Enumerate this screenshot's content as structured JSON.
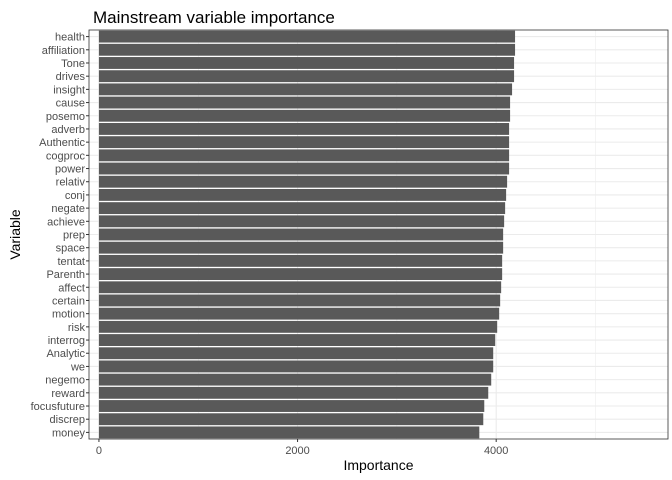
{
  "chart_data": {
    "type": "bar",
    "orientation": "horizontal",
    "title": "Mainstream variable importance",
    "xlabel": "Importance",
    "ylabel": "Variable",
    "xlim": [
      -100,
      5730
    ],
    "x_ticks": [
      0,
      2000,
      4000
    ],
    "x_tick_labels": [
      "0",
      "2000",
      "4000"
    ],
    "grid": true,
    "bar_color": "#595959",
    "grid_color": "#ebebeb",
    "panel_border_color": "#333333",
    "categories": [
      "health",
      "affiliation",
      "Tone",
      "drives",
      "insight",
      "cause",
      "posemo",
      "adverb",
      "Authentic",
      "cogproc",
      "power",
      "relativ",
      "conj",
      "negate",
      "achieve",
      "prep",
      "space",
      "tentat",
      "Parenth",
      "affect",
      "certain",
      "motion",
      "risk",
      "interrog",
      "Analytic",
      "we",
      "negemo",
      "reward",
      "focusfuture",
      "discrep",
      "money"
    ],
    "values": [
      4190,
      4190,
      4180,
      4180,
      4160,
      4140,
      4140,
      4130,
      4130,
      4130,
      4130,
      4110,
      4100,
      4090,
      4080,
      4070,
      4070,
      4060,
      4060,
      4050,
      4040,
      4030,
      4010,
      3990,
      3970,
      3970,
      3950,
      3920,
      3880,
      3870,
      3830
    ]
  }
}
